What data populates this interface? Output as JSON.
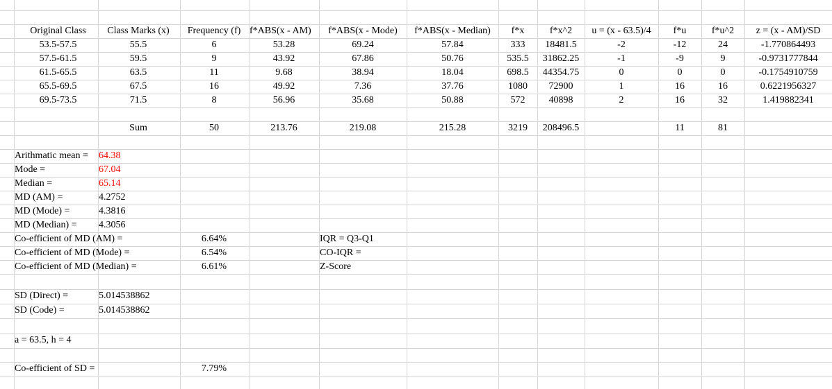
{
  "accent_color": "#ff0000",
  "headers": [
    "Original Class",
    "Class Marks (x)",
    "Frequency (f)",
    "f*ABS(x - AM)",
    "f*ABS(x - Mode)",
    "f*ABS(x - Median)",
    "f*x",
    "f*x^2",
    "u = (x - 63.5)/4",
    "f*u",
    "f*u^2",
    "z = (x - AM)/SD"
  ],
  "rows": [
    [
      "53.5-57.5",
      "55.5",
      "6",
      "53.28",
      "69.24",
      "57.84",
      "333",
      "18481.5",
      "-2",
      "-12",
      "24",
      "-1.770864493"
    ],
    [
      "57.5-61.5",
      "59.5",
      "9",
      "43.92",
      "67.86",
      "50.76",
      "535.5",
      "31862.25",
      "-1",
      "-9",
      "9",
      "-0.9731777844"
    ],
    [
      "61.5-65.5",
      "63.5",
      "11",
      "9.68",
      "38.94",
      "18.04",
      "698.5",
      "44354.75",
      "0",
      "0",
      "0",
      "-0.1754910759"
    ],
    [
      "65.5-69.5",
      "67.5",
      "16",
      "49.92",
      "7.36",
      "37.76",
      "1080",
      "72900",
      "1",
      "16",
      "16",
      "0.6221956327"
    ],
    [
      "69.5-73.5",
      "71.5",
      "8",
      "56.96",
      "35.68",
      "50.88",
      "572",
      "40898",
      "2",
      "16",
      "32",
      "1.419882341"
    ]
  ],
  "sum_row": {
    "label": "Sum",
    "frequency": "50",
    "abs_am": "213.76",
    "abs_mode": "219.08",
    "abs_median": "215.28",
    "fx": "3219",
    "fx2": "208496.5",
    "fu": "11",
    "fu2": "81"
  },
  "stats": [
    {
      "label": "Arithmatic mean = ",
      "value": "64.38",
      "highlight": true
    },
    {
      "label": "Mode =",
      "value": "67.04",
      "highlight": true
    },
    {
      "label": "Median =",
      "value": "65.14",
      "highlight": true
    },
    {
      "label": "MD (AM) =",
      "value": "4.2752",
      "highlight": false
    },
    {
      "label": "MD (Mode) =",
      "value": "4.3816",
      "highlight": false
    },
    {
      "label": "MD (Median) =",
      "value": "4.3056",
      "highlight": false
    }
  ],
  "coefficients": [
    {
      "label": "Co-efficient of MD (AM) =",
      "value": "6.64%",
      "note": "IQR = Q3-Q1"
    },
    {
      "label": "Co-efficient of MD (Mode) =",
      "value": "6.54%",
      "note": "CO-IQR ="
    },
    {
      "label": "Co-efficient of MD (Median) =",
      "value": "6.61%",
      "note": "Z-Score"
    }
  ],
  "sd": [
    {
      "label": "SD (Direct) =",
      "value": "5.014538862"
    },
    {
      "label": "SD (Code) =",
      "value": "5.014538862"
    }
  ],
  "code_params": "a = 63.5, h = 4",
  "coef_sd": {
    "label": "Co-efficient of SD =",
    "value": "7.79%"
  }
}
